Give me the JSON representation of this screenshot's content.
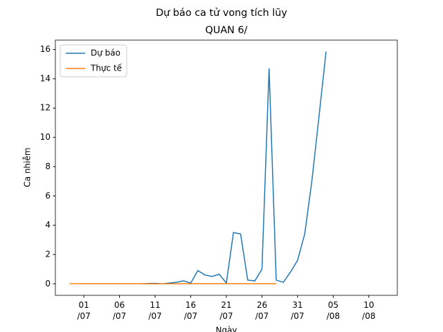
{
  "chart_data": {
    "type": "line",
    "title": "Dự báo ca tử vong tích lũy",
    "subtitle": "QUAN 6/",
    "xlabel": "Ngày",
    "ylabel": "Ca nhiễm",
    "x": [
      "29/06",
      "30/06",
      "01/07",
      "02/07",
      "03/07",
      "04/07",
      "05/07",
      "06/07",
      "07/07",
      "08/07",
      "09/07",
      "10/07",
      "11/07",
      "12/07",
      "13/07",
      "14/07",
      "15/07",
      "16/07",
      "17/07",
      "18/07",
      "19/07",
      "20/07",
      "21/07",
      "22/07",
      "23/07",
      "24/07",
      "25/07",
      "26/07",
      "27/07",
      "28/07",
      "29/07",
      "30/07",
      "31/07",
      "01/08",
      "02/08",
      "03/08",
      "04/08"
    ],
    "series": [
      {
        "name": "Dự báo",
        "color": "#1f77b4",
        "values": [
          0,
          0,
          0,
          0,
          0,
          0,
          0,
          0,
          0,
          0,
          0,
          0.02,
          0.03,
          0,
          0.05,
          0.1,
          0.2,
          0.05,
          0.9,
          0.6,
          0.5,
          0.65,
          0.05,
          3.5,
          3.4,
          0.25,
          0.2,
          1.0,
          14.7,
          0.25,
          0.1,
          0.8,
          1.6,
          3.4,
          7.0,
          11.4,
          15.85
        ]
      },
      {
        "name": "Thực tế",
        "color": "#ff7f0e",
        "values": [
          0,
          0,
          0,
          0,
          0,
          0,
          0,
          0,
          0,
          0,
          0,
          0,
          0,
          0,
          0,
          0,
          0,
          0,
          0,
          0,
          0,
          0,
          0,
          0,
          0,
          0,
          0,
          0,
          0,
          0,
          null,
          null,
          null,
          null,
          null,
          null,
          null
        ]
      }
    ],
    "xlim": [
      "27/06",
      "14/08"
    ],
    "xticks": [
      {
        "value": "01/07",
        "label": "01\n/07"
      },
      {
        "value": "06/07",
        "label": "06\n/07"
      },
      {
        "value": "11/07",
        "label": "11\n/07"
      },
      {
        "value": "16/07",
        "label": "16\n/07"
      },
      {
        "value": "21/07",
        "label": "21\n/07"
      },
      {
        "value": "26/07",
        "label": "26\n/07"
      },
      {
        "value": "31/07",
        "label": "31\n/07"
      },
      {
        "value": "05/08",
        "label": "05\n/08"
      },
      {
        "value": "10/08",
        "label": "10\n/08"
      }
    ],
    "ylim": [
      -0.79,
      16.64
    ],
    "yticks": [
      0,
      2,
      4,
      6,
      8,
      10,
      12,
      14,
      16
    ],
    "legend": "upper left",
    "grid": false
  }
}
